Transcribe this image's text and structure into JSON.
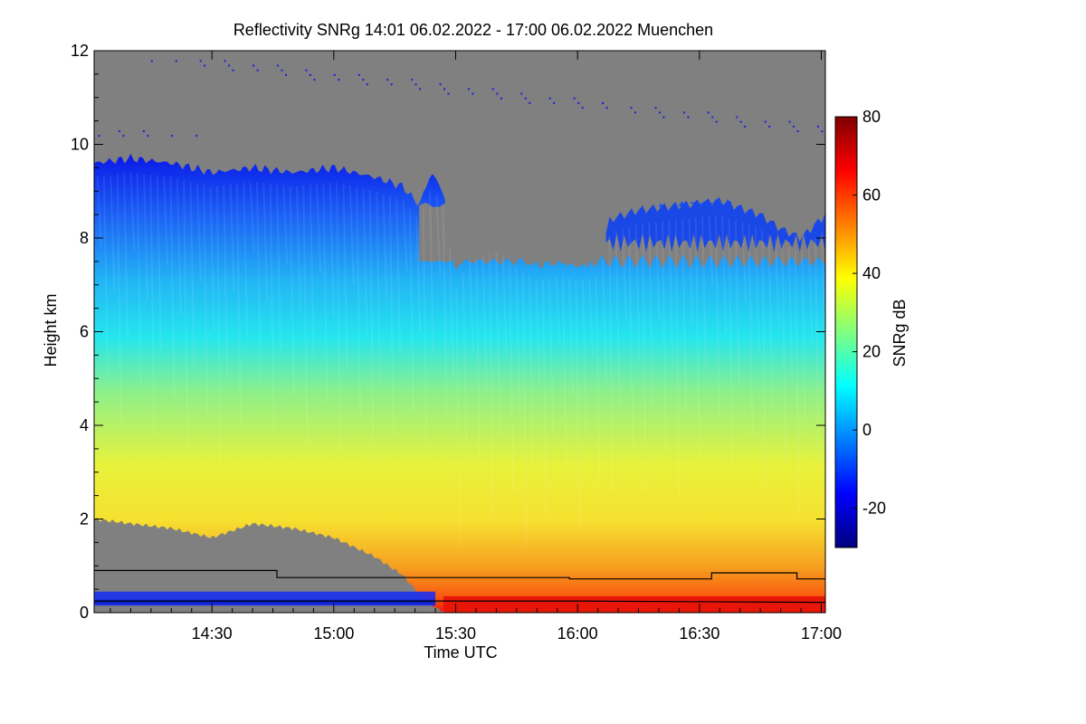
{
  "chart_data": {
    "type": "heatmap",
    "title": "Reflectivity SNRg   14:01 06.02.2022 - 17:00 06.02.2022 Muenchen",
    "xlabel": "Time UTC",
    "ylabel": "Height km",
    "xlim_minutes_utc": [
      841,
      1021
    ],
    "ylim": [
      0,
      12
    ],
    "x_ticks": [
      {
        "value": 870,
        "label": "14:30"
      },
      {
        "value": 900,
        "label": "15:00"
      },
      {
        "value": 930,
        "label": "15:30"
      },
      {
        "value": 960,
        "label": "16:00"
      },
      {
        "value": 990,
        "label": "16:30"
      },
      {
        "value": 1020,
        "label": "17:00"
      }
    ],
    "y_ticks": [
      0,
      2,
      4,
      6,
      8,
      10,
      12
    ],
    "colorbar": {
      "label": "SNRg dB",
      "range": [
        -30,
        80
      ],
      "ticks": [
        -20,
        0,
        20,
        40,
        60,
        80
      ]
    },
    "no_data_color": "#808080",
    "colormap": [
      "#00007f",
      "#0000ff",
      "#007fff",
      "#00ffff",
      "#7fff7f",
      "#ffff00",
      "#ff7f00",
      "#ff0000",
      "#7f0000"
    ],
    "cloud_top_km": [
      {
        "t": 841,
        "h": 9.6
      },
      {
        "t": 850,
        "h": 9.7
      },
      {
        "t": 860,
        "h": 9.6
      },
      {
        "t": 870,
        "h": 9.4
      },
      {
        "t": 880,
        "h": 9.5
      },
      {
        "t": 890,
        "h": 9.4
      },
      {
        "t": 900,
        "h": 9.5
      },
      {
        "t": 910,
        "h": 9.3
      },
      {
        "t": 917,
        "h": 9.1
      },
      {
        "t": 921,
        "h": 8.7
      },
      {
        "t": 924,
        "h": 9.4
      },
      {
        "t": 927,
        "h": 9.0
      },
      {
        "t": 930,
        "h": 7.2
      },
      {
        "t": 933,
        "h": 7.8
      },
      {
        "t": 940,
        "h": 8.0
      },
      {
        "t": 945,
        "h": 7.7
      },
      {
        "t": 950,
        "h": 7.4
      },
      {
        "t": 955,
        "h": 7.5
      },
      {
        "t": 960,
        "h": 7.4
      },
      {
        "t": 965,
        "h": 7.5
      },
      {
        "t": 968,
        "h": 8.4
      },
      {
        "t": 975,
        "h": 8.6
      },
      {
        "t": 985,
        "h": 8.7
      },
      {
        "t": 995,
        "h": 8.8
      },
      {
        "t": 1005,
        "h": 8.5
      },
      {
        "t": 1010,
        "h": 8.2
      },
      {
        "t": 1015,
        "h": 8.0
      },
      {
        "t": 1021,
        "h": 8.5
      }
    ],
    "cloud_base_km": [
      {
        "t": 841,
        "h": 2.0
      },
      {
        "t": 850,
        "h": 1.9
      },
      {
        "t": 860,
        "h": 1.8
      },
      {
        "t": 870,
        "h": 1.6
      },
      {
        "t": 880,
        "h": 1.9
      },
      {
        "t": 890,
        "h": 1.8
      },
      {
        "t": 900,
        "h": 1.6
      },
      {
        "t": 910,
        "h": 1.2
      },
      {
        "t": 917,
        "h": 0.8
      },
      {
        "t": 922,
        "h": 0.3
      },
      {
        "t": 926,
        "h": 0.05
      },
      {
        "t": 1021,
        "h": 0.0
      }
    ],
    "clear_gap": {
      "t_start": 921,
      "t_end": 1021,
      "top_km": 8.8,
      "bottom_km": 7.4
    },
    "black_lines": [
      {
        "name": "upper",
        "points": [
          {
            "t": 841,
            "h": 0.9
          },
          {
            "t": 886,
            "h": 0.9
          },
          {
            "t": 886,
            "h": 0.75
          },
          {
            "t": 958,
            "h": 0.75
          },
          {
            "t": 958,
            "h": 0.72
          },
          {
            "t": 993,
            "h": 0.72
          },
          {
            "t": 993,
            "h": 0.85
          },
          {
            "t": 1014,
            "h": 0.85
          },
          {
            "t": 1014,
            "h": 0.72
          },
          {
            "t": 1021,
            "h": 0.72
          }
        ]
      },
      {
        "name": "lower",
        "points": [
          {
            "t": 841,
            "h": 0.25
          },
          {
            "t": 958,
            "h": 0.25
          },
          {
            "t": 958,
            "h": 0.25
          },
          {
            "t": 1021,
            "h": 0.22
          }
        ]
      }
    ]
  }
}
